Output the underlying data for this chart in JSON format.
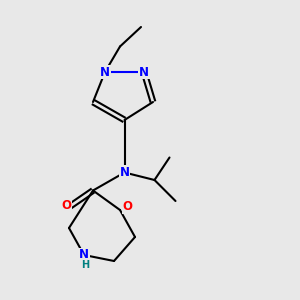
{
  "bg_color": "#e8e8e8",
  "bond_color": "#000000",
  "N_color": "#0000ff",
  "O_color": "#ff0000",
  "NH_color": "#0000ff",
  "NH_H_color": "#008080",
  "line_width": 1.5,
  "figsize": [
    3.0,
    3.0
  ],
  "dpi": 100,
  "xlim": [
    0,
    10
  ],
  "ylim": [
    0,
    10
  ]
}
